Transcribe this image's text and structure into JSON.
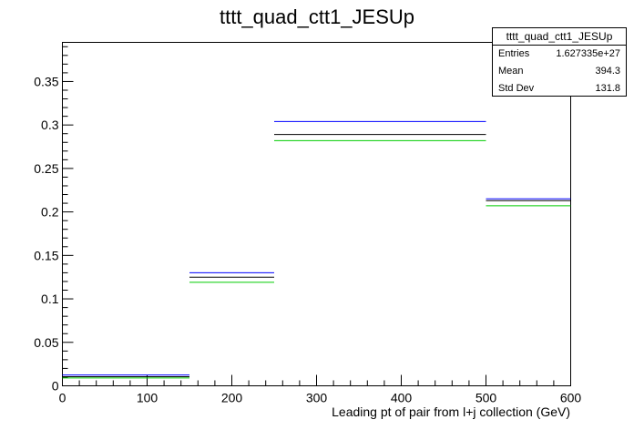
{
  "chart_data": {
    "type": "line",
    "title": "tttt_quad_ctt1_JESUp",
    "xlabel": "Leading pt of pair from l+j collection (GeV)",
    "ylabel": "",
    "xlim": [
      0,
      600
    ],
    "ylim": [
      0,
      0.395
    ],
    "xticks": [
      0,
      100,
      200,
      300,
      400,
      500,
      600
    ],
    "yticks": [
      0,
      0.05,
      0.1,
      0.15,
      0.2,
      0.25,
      0.3,
      0.35
    ],
    "xtick_labels": [
      "0",
      "100",
      "200",
      "300",
      "400",
      "500",
      "600"
    ],
    "ytick_labels": [
      "0",
      "0.05",
      "0.1",
      "0.15",
      "0.2",
      "0.25",
      "0.3",
      "0.35"
    ],
    "bin_edges": [
      0,
      150,
      250,
      500,
      600
    ],
    "grid": false,
    "series": [
      {
        "color": "#0000ff",
        "values": [
          0.0125,
          0.13,
          0.304,
          0.215
        ]
      },
      {
        "color": "#000000",
        "values": [
          0.0105,
          0.125,
          0.289,
          0.213
        ]
      },
      {
        "color": "#00cc00",
        "values": [
          0.009,
          0.119,
          0.282,
          0.207
        ]
      }
    ],
    "stats": {
      "title": "tttt_quad_ctt1_JESUp",
      "rows": [
        {
          "label": "Entries",
          "value": "1.627335e+27"
        },
        {
          "label": "Mean",
          "value": "394.3"
        },
        {
          "label": "Std Dev",
          "value": "131.8"
        }
      ]
    }
  }
}
